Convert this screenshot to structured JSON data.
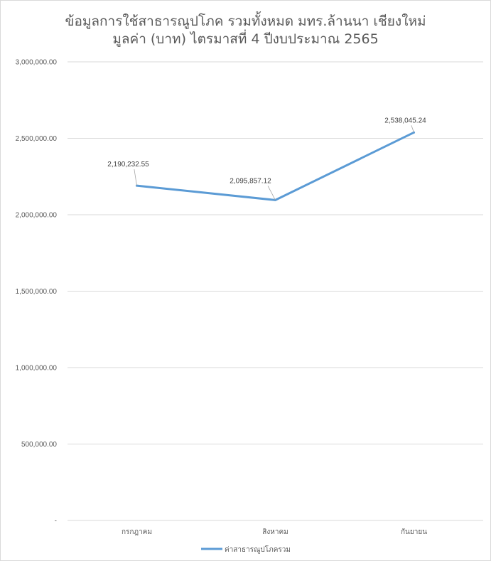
{
  "chart_data": {
    "type": "line",
    "title_line1": "ข้อมูลการใช้สาธารณูปโภค รวมทั้งหมด มทร.ล้านนา เชียงใหม่",
    "title_line2": "มูลค่า (บาท) ไตรมาสที่ 4 ปีงบประมาณ 2565",
    "categories": [
      "กรกฎาคม",
      "สิงหาคม",
      "กันยายน"
    ],
    "series": [
      {
        "name": "ค่าสาธารณูปโภครวม",
        "values": [
          2190232.55,
          2095857.12,
          2538045.24
        ],
        "labels": [
          "2,190,232.55",
          "2,095,857.12",
          "2,538,045.24"
        ],
        "color": "#5b9bd5"
      }
    ],
    "ylim": [
      0,
      3000000
    ],
    "yticks": [
      {
        "value": 0,
        "label": "-"
      },
      {
        "value": 500000,
        "label": "500,000.00"
      },
      {
        "value": 1000000,
        "label": "1,000,000.00"
      },
      {
        "value": 1500000,
        "label": "1,500,000.00"
      },
      {
        "value": 2000000,
        "label": "2,000,000.00"
      },
      {
        "value": 2500000,
        "label": "2,500,000.00"
      },
      {
        "value": 3000000,
        "label": "3,000,000.00"
      }
    ],
    "grid": true,
    "legend_position": "bottom",
    "gridline_color": "#d9d9d9"
  }
}
